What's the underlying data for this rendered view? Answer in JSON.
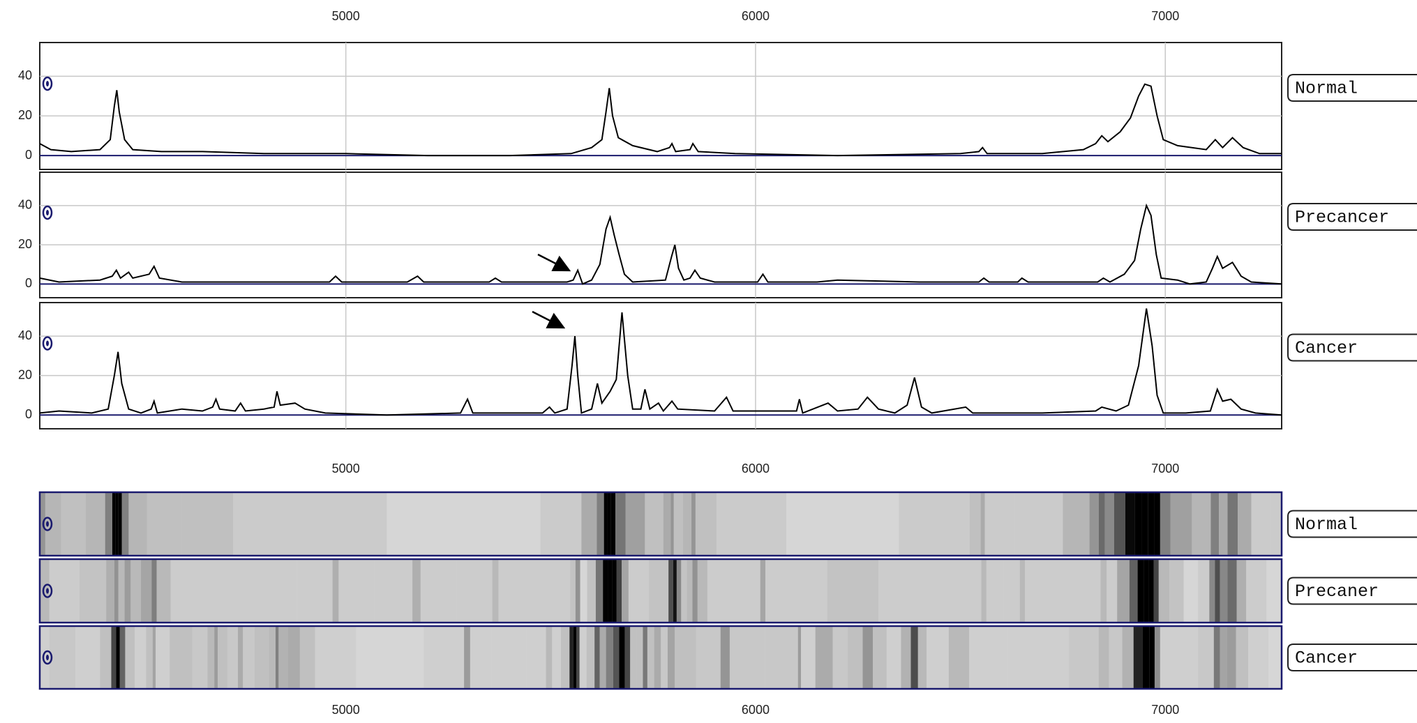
{
  "chart_data": [
    {
      "type": "line",
      "xlim": [
        4253,
        7284
      ],
      "xticks": [
        5000,
        6000,
        7000
      ],
      "ylim": [
        -7,
        57
      ],
      "yticks": [
        0,
        20,
        40
      ],
      "grid": true,
      "x": [
        4253,
        4280,
        4330,
        4400,
        4425,
        4435,
        4441,
        4447,
        4460,
        4480,
        4550,
        4650,
        4800,
        5000,
        5200,
        5400,
        5550,
        5600,
        5625,
        5635,
        5643,
        5651,
        5665,
        5700,
        5760,
        5790,
        5796,
        5805,
        5840,
        5847,
        5860,
        5950,
        6200,
        6500,
        6545,
        6554,
        6565,
        6700,
        6800,
        6830,
        6845,
        6860,
        6890,
        6915,
        6935,
        6950,
        6965,
        6980,
        6995,
        7030,
        7100,
        7122,
        7140,
        7164,
        7190,
        7230,
        7284
      ],
      "series": [
        {
          "name": "Normal",
          "color": "#000000",
          "values": [
            6,
            3,
            2,
            3,
            8,
            25,
            33,
            22,
            8,
            3,
            2,
            2,
            1,
            1,
            0,
            0,
            1,
            4,
            8,
            22,
            34,
            20,
            9,
            5,
            2,
            4,
            6,
            2,
            3,
            6,
            2,
            1,
            0,
            1,
            2,
            4,
            1,
            1,
            3,
            6,
            10,
            7,
            12,
            19,
            30,
            36,
            35,
            20,
            8,
            5,
            3,
            8,
            4,
            9,
            4,
            1,
            1
          ]
        }
      ]
    },
    {
      "type": "line",
      "xlim": [
        4253,
        7284
      ],
      "xticks": [
        5000,
        6000,
        7000
      ],
      "ylim": [
        -7,
        57
      ],
      "yticks": [
        0,
        20,
        40
      ],
      "grid": true,
      "x": [
        4253,
        4300,
        4400,
        4430,
        4440,
        4450,
        4470,
        4480,
        4520,
        4532,
        4545,
        4600,
        4800,
        4960,
        4975,
        4990,
        5150,
        5175,
        5190,
        5350,
        5365,
        5380,
        5540,
        5555,
        5566,
        5578,
        5600,
        5620,
        5635,
        5645,
        5655,
        5667,
        5680,
        5700,
        5780,
        5795,
        5803,
        5812,
        5825,
        5840,
        5852,
        5865,
        5900,
        6005,
        6018,
        6030,
        6150,
        6200,
        6400,
        6545,
        6557,
        6570,
        6640,
        6650,
        6665,
        6835,
        6849,
        6865,
        6900,
        6925,
        6940,
        6954,
        6965,
        6978,
        6990,
        7030,
        7060,
        7100,
        7115,
        7127,
        7140,
        7164,
        7185,
        7210,
        7284
      ],
      "series": [
        {
          "name": "Precancer",
          "color": "#000000",
          "values": [
            3,
            1,
            2,
            4,
            7,
            3,
            6,
            3,
            5,
            9,
            3,
            1,
            1,
            1,
            4,
            1,
            1,
            4,
            1,
            1,
            3,
            1,
            1,
            2,
            7,
            0,
            2,
            10,
            28,
            34,
            25,
            15,
            5,
            1,
            2,
            14,
            20,
            8,
            2,
            3,
            7,
            3,
            1,
            1,
            5,
            1,
            1,
            2,
            1,
            1,
            3,
            1,
            1,
            3,
            1,
            1,
            3,
            1,
            5,
            12,
            28,
            40,
            35,
            15,
            3,
            2,
            0,
            1,
            8,
            14,
            8,
            11,
            4,
            1,
            0
          ]
        }
      ]
    },
    {
      "type": "line",
      "xlim": [
        4253,
        7284
      ],
      "xticks": [
        5000,
        6000,
        7000
      ],
      "ylim": [
        -7,
        57
      ],
      "yticks": [
        0,
        20,
        40
      ],
      "grid": true,
      "x": [
        4253,
        4300,
        4380,
        4420,
        4435,
        4444,
        4453,
        4470,
        4500,
        4525,
        4532,
        4540,
        4600,
        4650,
        4675,
        4683,
        4692,
        4730,
        4743,
        4755,
        4800,
        4825,
        4832,
        4840,
        4876,
        4900,
        4950,
        5100,
        5280,
        5297,
        5310,
        5400,
        5480,
        5497,
        5510,
        5540,
        5552,
        5559,
        5566,
        5575,
        5600,
        5614,
        5625,
        5645,
        5660,
        5674,
        5688,
        5700,
        5720,
        5730,
        5742,
        5763,
        5775,
        5796,
        5810,
        5900,
        5929,
        5945,
        6100,
        6107,
        6115,
        6177,
        6200,
        6250,
        6273,
        6300,
        6340,
        6370,
        6388,
        6405,
        6430,
        6513,
        6530,
        6700,
        6830,
        6845,
        6880,
        6910,
        6935,
        6954,
        6968,
        6980,
        6995,
        7050,
        7110,
        7127,
        7140,
        7160,
        7185,
        7220,
        7284
      ],
      "series": [
        {
          "name": "Cancer",
          "color": "#000000",
          "values": [
            1,
            2,
            1,
            3,
            20,
            32,
            16,
            3,
            1,
            3,
            7,
            1,
            3,
            2,
            4,
            8,
            3,
            2,
            6,
            2,
            3,
            4,
            12,
            5,
            6,
            3,
            1,
            0,
            1,
            8,
            1,
            1,
            1,
            4,
            1,
            3,
            25,
            40,
            20,
            1,
            3,
            16,
            6,
            12,
            18,
            52,
            20,
            3,
            3,
            13,
            3,
            6,
            2,
            7,
            3,
            2,
            9,
            2,
            2,
            8,
            1,
            6,
            2,
            3,
            9,
            3,
            1,
            5,
            19,
            4,
            1,
            4,
            1,
            1,
            2,
            4,
            2,
            5,
            25,
            54,
            35,
            10,
            1,
            1,
            2,
            13,
            7,
            8,
            3,
            1,
            0
          ]
        }
      ]
    }
  ],
  "gel_view": {
    "lane_labels": [
      "Normal",
      "Precaner",
      "Cancer"
    ]
  }
}
